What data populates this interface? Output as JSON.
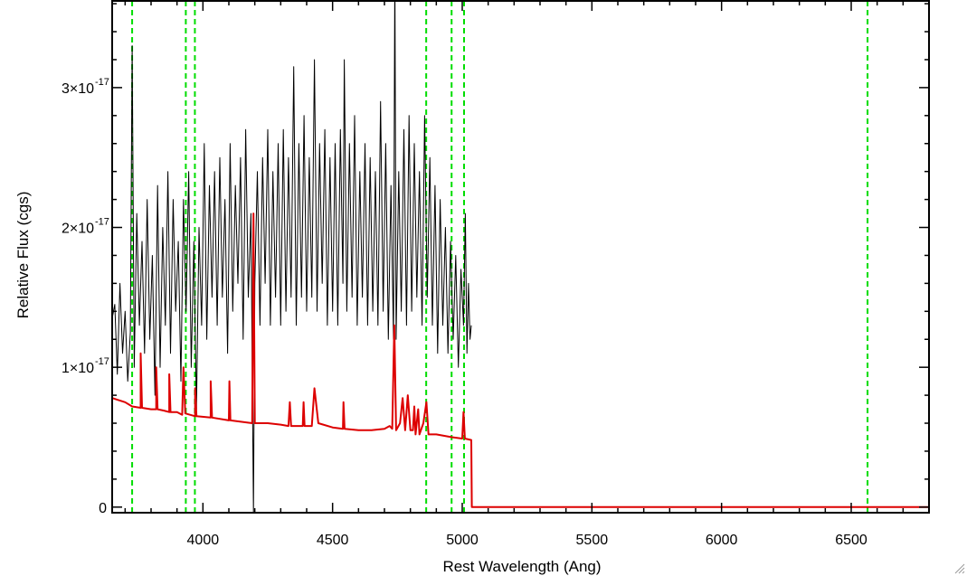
{
  "chart_data": {
    "type": "line",
    "xlabel": "Rest Wavelength (Ang)",
    "ylabel": "Relative Flux (cgs)",
    "xlim": [
      3650,
      6800
    ],
    "ylim": [
      -4e-19,
      3.62e-17
    ],
    "x_ticks": [
      {
        "value": 4000,
        "label": "4000"
      },
      {
        "value": 4500,
        "label": "4500"
      },
      {
        "value": 5000,
        "label": "5000"
      },
      {
        "value": 5500,
        "label": "5500"
      },
      {
        "value": 6000,
        "label": "6000"
      },
      {
        "value": 6500,
        "label": "6500"
      }
    ],
    "y_ticks": [
      {
        "value": 0,
        "mantissa": "0",
        "exponent": ""
      },
      {
        "value": 1e-17,
        "mantissa": "1×10",
        "exponent": "-17"
      },
      {
        "value": 2e-17,
        "mantissa": "2×10",
        "exponent": "-17"
      },
      {
        "value": 3e-17,
        "mantissa": "3×10",
        "exponent": "-17"
      }
    ],
    "grid": false,
    "reference_lines": {
      "color": "#00dd00",
      "style": "dashed",
      "x": [
        3727,
        3934,
        3969,
        4861,
        4959,
        5007,
        6563
      ]
    },
    "series": [
      {
        "color": "#000000",
        "points": [
          [
            3650,
            1.35e-17
          ],
          [
            3660,
            1.45e-17
          ],
          [
            3670,
            9.5e-18
          ],
          [
            3680,
            1.6e-17
          ],
          [
            3690,
            1.1e-17
          ],
          [
            3700,
            1.4e-17
          ],
          [
            3710,
            9e-18
          ],
          [
            3720,
            1.25e-17
          ],
          [
            3727,
            3.3e-17
          ],
          [
            3735,
            1e-17
          ],
          [
            3745,
            2.1e-17
          ],
          [
            3755,
            1.3e-17
          ],
          [
            3765,
            1.9e-17
          ],
          [
            3775,
            1.1e-17
          ],
          [
            3785,
            2.2e-17
          ],
          [
            3795,
            1.2e-17
          ],
          [
            3805,
            1.8e-17
          ],
          [
            3815,
            8e-18
          ],
          [
            3825,
            2.3e-17
          ],
          [
            3835,
            1e-17
          ],
          [
            3845,
            2e-17
          ],
          [
            3855,
            1.3e-17
          ],
          [
            3865,
            2.4e-17
          ],
          [
            3875,
            1.1e-17
          ],
          [
            3885,
            2.2e-17
          ],
          [
            3895,
            1.4e-17
          ],
          [
            3905,
            1.9e-17
          ],
          [
            3915,
            9e-18
          ],
          [
            3925,
            2.2e-17
          ],
          [
            3935,
            1.4e-17
          ],
          [
            3945,
            2.4e-17
          ],
          [
            3955,
            1e-17
          ],
          [
            3965,
            1.9e-17
          ],
          [
            3975,
            7e-18
          ],
          [
            3985,
            2e-17
          ],
          [
            3995,
            1.3e-17
          ],
          [
            4005,
            2.6e-17
          ],
          [
            4015,
            1.2e-17
          ],
          [
            4025,
            2.3e-17
          ],
          [
            4035,
            1.5e-17
          ],
          [
            4045,
            2.4e-17
          ],
          [
            4055,
            1.3e-17
          ],
          [
            4065,
            2.5e-17
          ],
          [
            4075,
            1.5e-17
          ],
          [
            4085,
            2.2e-17
          ],
          [
            4095,
            1.1e-17
          ],
          [
            4105,
            2.6e-17
          ],
          [
            4115,
            1.4e-17
          ],
          [
            4125,
            2.3e-17
          ],
          [
            4135,
            1.6e-17
          ],
          [
            4145,
            2.5e-17
          ],
          [
            4155,
            1.2e-17
          ],
          [
            4165,
            2.7e-17
          ],
          [
            4175,
            1.5e-17
          ],
          [
            4185,
            2.1e-17
          ],
          [
            4190,
            1e-17
          ],
          [
            4195,
            -4e-19
          ],
          [
            4200,
            1.6e-17
          ],
          [
            4210,
            2.4e-17
          ],
          [
            4220,
            1.3e-17
          ],
          [
            4230,
            2.5e-17
          ],
          [
            4240,
            1.6e-17
          ],
          [
            4250,
            2.7e-17
          ],
          [
            4260,
            1.3e-17
          ],
          [
            4270,
            2.4e-17
          ],
          [
            4280,
            1.5e-17
          ],
          [
            4290,
            2.6e-17
          ],
          [
            4300,
            1.3e-17
          ],
          [
            4310,
            2.7e-17
          ],
          [
            4320,
            1.4e-17
          ],
          [
            4330,
            2.5e-17
          ],
          [
            4340,
            1.5e-17
          ],
          [
            4350,
            3.15e-17
          ],
          [
            4360,
            1.3e-17
          ],
          [
            4370,
            2.6e-17
          ],
          [
            4380,
            1.5e-17
          ],
          [
            4390,
            2.8e-17
          ],
          [
            4400,
            1.4e-17
          ],
          [
            4410,
            2.5e-17
          ],
          [
            4420,
            1.5e-17
          ],
          [
            4430,
            3.2e-17
          ],
          [
            4440,
            1.4e-17
          ],
          [
            4450,
            2.6e-17
          ],
          [
            4460,
            1.6e-17
          ],
          [
            4470,
            2.7e-17
          ],
          [
            4480,
            1.3e-17
          ],
          [
            4490,
            2.5e-17
          ],
          [
            4500,
            1.4e-17
          ],
          [
            4510,
            2.6e-17
          ],
          [
            4520,
            1.3e-17
          ],
          [
            4530,
            2.7e-17
          ],
          [
            4540,
            1.6e-17
          ],
          [
            4545,
            3.2e-17
          ],
          [
            4555,
            1.4e-17
          ],
          [
            4565,
            2.6e-17
          ],
          [
            4575,
            1.5e-17
          ],
          [
            4585,
            2.8e-17
          ],
          [
            4595,
            1.3e-17
          ],
          [
            4605,
            2.4e-17
          ],
          [
            4615,
            1.5e-17
          ],
          [
            4625,
            2.6e-17
          ],
          [
            4635,
            1.3e-17
          ],
          [
            4645,
            2.5e-17
          ],
          [
            4655,
            1.4e-17
          ],
          [
            4665,
            2.4e-17
          ],
          [
            4675,
            1.3e-17
          ],
          [
            4685,
            2.9e-17
          ],
          [
            4695,
            1.4e-17
          ],
          [
            4705,
            2.6e-17
          ],
          [
            4715,
            1.2e-17
          ],
          [
            4725,
            2.3e-17
          ],
          [
            4735,
            1.2e-17
          ],
          [
            4740,
            3.9e-17
          ],
          [
            4745,
            1.2e-17
          ],
          [
            4755,
            2.4e-17
          ],
          [
            4765,
            1.4e-17
          ],
          [
            4775,
            2.7e-17
          ],
          [
            4785,
            1.3e-17
          ],
          [
            4795,
            2.8e-17
          ],
          [
            4805,
            1.4e-17
          ],
          [
            4815,
            2.6e-17
          ],
          [
            4825,
            1.5e-17
          ],
          [
            4835,
            2.4e-17
          ],
          [
            4845,
            1.3e-17
          ],
          [
            4855,
            2.8e-17
          ],
          [
            4865,
            1.5e-17
          ],
          [
            4875,
            2.5e-17
          ],
          [
            4885,
            1.3e-17
          ],
          [
            4895,
            2.3e-17
          ],
          [
            4905,
            1.1e-17
          ],
          [
            4915,
            2.2e-17
          ],
          [
            4925,
            1.3e-17
          ],
          [
            4935,
            2e-17
          ],
          [
            4945,
            1.1e-17
          ],
          [
            4955,
            1.9e-17
          ],
          [
            4965,
            1.2e-17
          ],
          [
            4975,
            1.8e-17
          ],
          [
            4985,
            1e-17
          ],
          [
            4995,
            1.7e-17
          ],
          [
            5005,
            1.3e-17
          ],
          [
            5012,
            2.1e-17
          ],
          [
            5018,
            1.1e-17
          ],
          [
            5024,
            1.6e-17
          ],
          [
            5030,
            1.2e-17
          ],
          [
            5035,
            1.3e-17
          ]
        ]
      },
      {
        "color": "#dd0000",
        "points": [
          [
            3650,
            7.8e-18
          ],
          [
            3700,
            7.5e-18
          ],
          [
            3727,
            7.2e-18
          ],
          [
            3760,
            7.1e-18
          ],
          [
            3760,
            1.1e-17
          ],
          [
            3765,
            7.1e-18
          ],
          [
            3800,
            7e-18
          ],
          [
            3820,
            7e-18
          ],
          [
            3820,
            1e-17
          ],
          [
            3825,
            7e-18
          ],
          [
            3850,
            6.9e-18
          ],
          [
            3870,
            6.8e-18
          ],
          [
            3870,
            9.5e-18
          ],
          [
            3875,
            6.8e-18
          ],
          [
            3900,
            6.8e-18
          ],
          [
            3920,
            6.6e-18
          ],
          [
            3925,
            1e-17
          ],
          [
            3932,
            6.7e-18
          ],
          [
            3970,
            6.5e-18
          ],
          [
            3970,
            8.5e-18
          ],
          [
            3975,
            6.5e-18
          ],
          [
            4030,
            6.4e-18
          ],
          [
            4030,
            9e-18
          ],
          [
            4035,
            6.4e-18
          ],
          [
            4100,
            6.2e-18
          ],
          [
            4102,
            9e-18
          ],
          [
            4106,
            6.2e-18
          ],
          [
            4190,
            6e-18
          ],
          [
            4195,
            2.1e-17
          ],
          [
            4200,
            6e-18
          ],
          [
            4250,
            6e-18
          ],
          [
            4300,
            5.9e-18
          ],
          [
            4330,
            5.8e-18
          ],
          [
            4335,
            7.5e-18
          ],
          [
            4340,
            5.8e-18
          ],
          [
            4385,
            5.8e-18
          ],
          [
            4388,
            7.5e-18
          ],
          [
            4392,
            5.8e-18
          ],
          [
            4420,
            5.8e-18
          ],
          [
            4430,
            8.5e-18
          ],
          [
            4445,
            6e-18
          ],
          [
            4500,
            5.7e-18
          ],
          [
            4540,
            5.6e-18
          ],
          [
            4542,
            7.5e-18
          ],
          [
            4546,
            5.6e-18
          ],
          [
            4600,
            5.5e-18
          ],
          [
            4650,
            5.5e-18
          ],
          [
            4700,
            5.6e-18
          ],
          [
            4720,
            5.8e-18
          ],
          [
            4730,
            5.6e-18
          ],
          [
            4738,
            1.3e-17
          ],
          [
            4745,
            5.5e-18
          ],
          [
            4760,
            6e-18
          ],
          [
            4770,
            7.8e-18
          ],
          [
            4780,
            5.5e-18
          ],
          [
            4790,
            8e-18
          ],
          [
            4800,
            5.5e-18
          ],
          [
            4810,
            5.5e-18
          ],
          [
            4815,
            7.2e-18
          ],
          [
            4820,
            5.2e-18
          ],
          [
            4830,
            7e-18
          ],
          [
            4835,
            5.2e-18
          ],
          [
            4850,
            6e-18
          ],
          [
            4862,
            7.5e-18
          ],
          [
            4870,
            5.2e-18
          ],
          [
            4900,
            5.2e-18
          ],
          [
            4960,
            5e-18
          ],
          [
            5000,
            4.9e-18
          ],
          [
            5005,
            6.8e-18
          ],
          [
            5010,
            4.9e-18
          ],
          [
            5035,
            4.8e-18
          ],
          [
            5037,
            0
          ],
          [
            6800,
            0
          ]
        ]
      }
    ]
  }
}
